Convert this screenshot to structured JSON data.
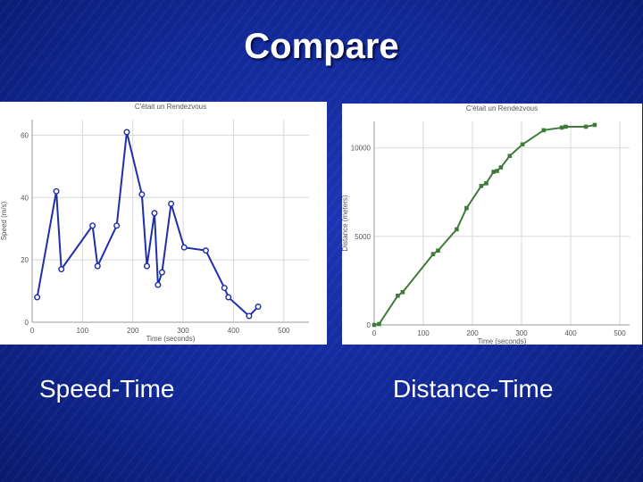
{
  "slide": {
    "title": "Compare",
    "captions": {
      "left": "Speed-Time",
      "right": "Distance-Time"
    }
  },
  "colors": {
    "speed_line": "#1f2fa8",
    "distance_line": "#3f7a3a",
    "background": "#14299b"
  },
  "chart_data": [
    {
      "type": "line",
      "title": "C'était un Rendezvous",
      "xlabel": "Time (seconds)",
      "ylabel": "Speed (m/s)",
      "xlim": [
        0,
        550
      ],
      "ylim": [
        0,
        65
      ],
      "x_ticks": [
        "0",
        "100",
        "200",
        "300",
        "400",
        "500"
      ],
      "y_ticks": [
        "0",
        "20",
        "40",
        "60"
      ],
      "grid": true,
      "series": [
        {
          "marker": "circle",
          "x": [
            10,
            48,
            58,
            120,
            130,
            168,
            188,
            218,
            228,
            243,
            250,
            258,
            276,
            302,
            345,
            382,
            390,
            431,
            449
          ],
          "y": [
            8,
            42,
            17,
            31,
            18,
            31,
            61,
            41,
            18,
            35,
            12,
            16,
            38,
            24,
            23,
            11,
            8,
            2,
            5
          ]
        }
      ]
    },
    {
      "type": "line",
      "title": "C'était un Rendezvous",
      "xlabel": "Time (seconds)",
      "ylabel": "Distance (meters)",
      "xlim": [
        0,
        520
      ],
      "ylim": [
        0,
        11500
      ],
      "x_ticks": [
        "0",
        "100",
        "200",
        "300",
        "400",
        "500"
      ],
      "y_ticks": [
        "0",
        "5000",
        "10000"
      ],
      "grid": true,
      "series": [
        {
          "marker": "square",
          "x": [
            0,
            10,
            48,
            58,
            120,
            130,
            168,
            188,
            218,
            228,
            243,
            250,
            258,
            276,
            302,
            345,
            382,
            390,
            431,
            449
          ],
          "y": [
            0,
            50,
            1650,
            1850,
            4000,
            4200,
            5400,
            6600,
            7850,
            8000,
            8650,
            8700,
            8900,
            9550,
            10200,
            11000,
            11150,
            11200,
            11200,
            11300
          ]
        }
      ]
    }
  ]
}
